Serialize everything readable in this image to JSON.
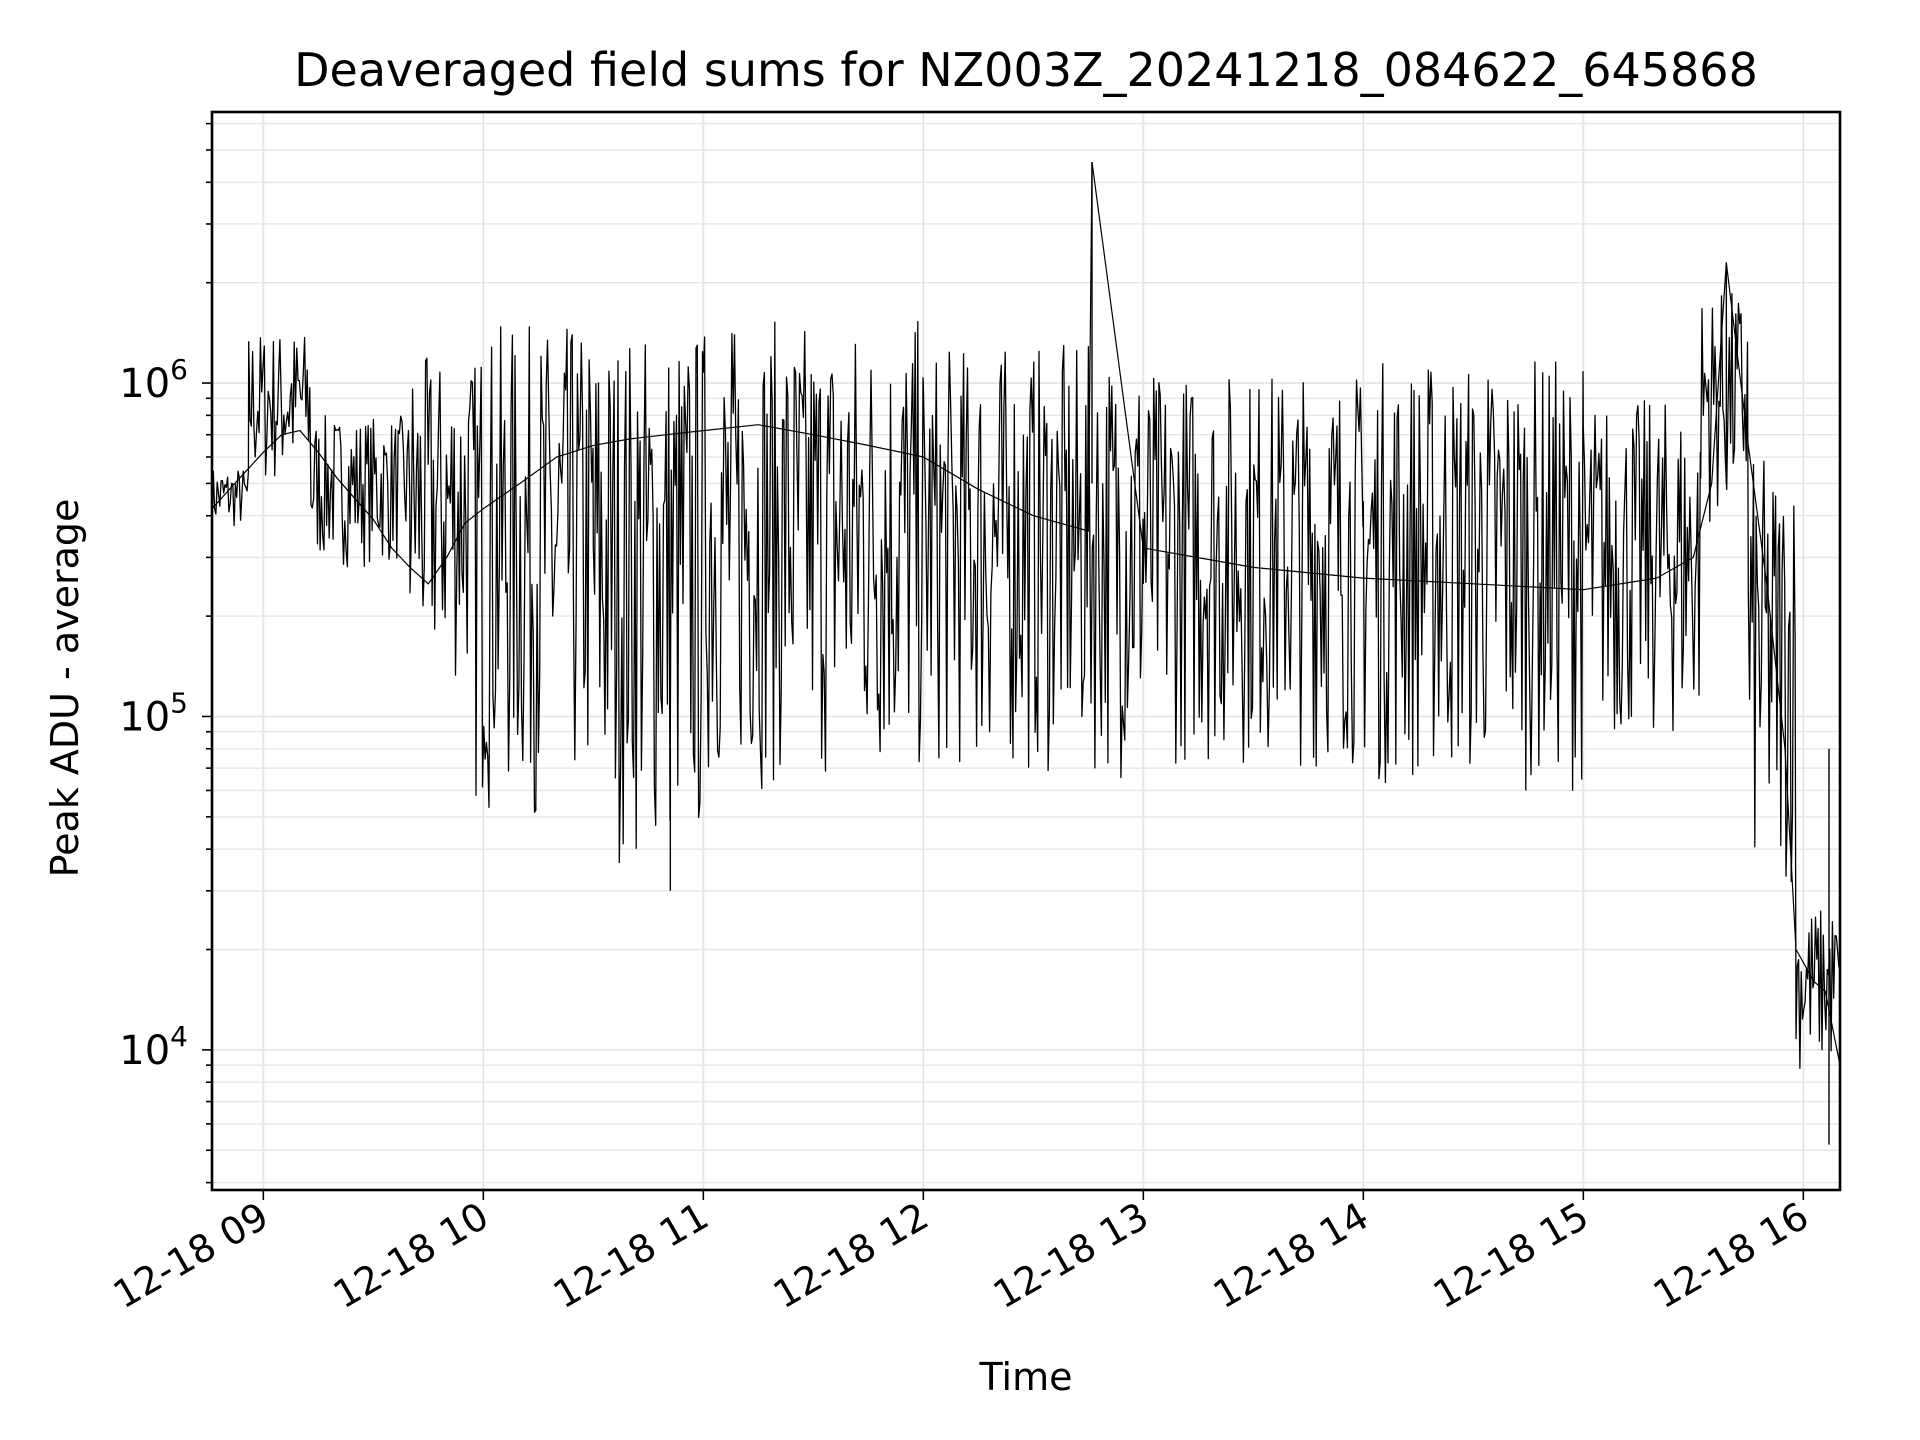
{
  "chart_data": {
    "type": "line",
    "title": "Deaveraged field sums for NZ003Z_20241218_084622_645868",
    "xlabel": "Time",
    "ylabel": "Peak ADU - average",
    "yscale": "log",
    "xlim": [
      "2024-12-18 08:46",
      "2024-12-18 16:10"
    ],
    "ylim": [
      3800,
      6500000
    ],
    "grid": true,
    "x_ticks": [
      {
        "value": "2024-12-18 09:00",
        "label": "12-18 09"
      },
      {
        "value": "2024-12-18 10:00",
        "label": "12-18 10"
      },
      {
        "value": "2024-12-18 11:00",
        "label": "12-18 11"
      },
      {
        "value": "2024-12-18 12:00",
        "label": "12-18 12"
      },
      {
        "value": "2024-12-18 13:00",
        "label": "12-18 13"
      },
      {
        "value": "2024-12-18 14:00",
        "label": "12-18 14"
      },
      {
        "value": "2024-12-18 15:00",
        "label": "12-18 15"
      },
      {
        "value": "2024-12-18 16:00",
        "label": "12-18 16"
      }
    ],
    "y_ticks": [
      {
        "value": 10000,
        "base": "10",
        "exp": "4"
      },
      {
        "value": 100000,
        "base": "10",
        "exp": "5"
      },
      {
        "value": 1000000,
        "base": "10",
        "exp": "6"
      }
    ],
    "series": [
      {
        "color": "#000000",
        "points": [
          [
            "2024-12-18 08:46",
            420000
          ],
          [
            "2024-12-18 08:50",
            470000
          ],
          [
            "2024-12-18 08:55",
            540000
          ],
          [
            "2024-12-18 09:00",
            620000
          ],
          [
            "2024-12-18 09:05",
            700000
          ],
          [
            "2024-12-18 09:10",
            720000
          ],
          [
            "2024-12-18 09:15",
            620000
          ],
          [
            "2024-12-18 09:20",
            520000
          ],
          [
            "2024-12-18 09:25",
            450000
          ],
          [
            "2024-12-18 09:30",
            390000
          ],
          [
            "2024-12-18 09:35",
            320000
          ],
          [
            "2024-12-18 09:40",
            280000
          ],
          [
            "2024-12-18 09:45",
            250000
          ],
          [
            "2024-12-18 09:50",
            300000
          ],
          [
            "2024-12-18 09:55",
            380000
          ],
          [
            "2024-12-18 10:00",
            420000
          ],
          [
            "2024-12-18 10:10",
            500000
          ],
          [
            "2024-12-18 10:20",
            600000
          ],
          [
            "2024-12-18 10:30",
            650000
          ],
          [
            "2024-12-18 10:40",
            680000
          ],
          [
            "2024-12-18 10:50",
            700000
          ],
          [
            "2024-12-18 11:00",
            720000
          ],
          [
            "2024-12-18 11:15",
            750000
          ],
          [
            "2024-12-18 11:30",
            700000
          ],
          [
            "2024-12-18 11:45",
            650000
          ],
          [
            "2024-12-18 12:00",
            600000
          ],
          [
            "2024-12-18 12:15",
            480000
          ],
          [
            "2024-12-18 12:30",
            400000
          ],
          [
            "2024-12-18 12:45",
            360000
          ],
          [
            "2024-12-18 12:46",
            4600000
          ],
          [
            "2024-12-18 13:00",
            320000
          ],
          [
            "2024-12-18 13:30",
            280000
          ],
          [
            "2024-12-18 14:00",
            260000
          ],
          [
            "2024-12-18 14:30",
            250000
          ],
          [
            "2024-12-18 15:00",
            240000
          ],
          [
            "2024-12-18 15:20",
            260000
          ],
          [
            "2024-12-18 15:30",
            300000
          ],
          [
            "2024-12-18 15:35",
            500000
          ],
          [
            "2024-12-18 15:39",
            2300000
          ],
          [
            "2024-12-18 15:45",
            650000
          ],
          [
            "2024-12-18 15:50",
            250000
          ],
          [
            "2024-12-18 15:55",
            80000
          ],
          [
            "2024-12-18 15:58",
            20000
          ],
          [
            "2024-12-18 16:03",
            16000
          ],
          [
            "2024-12-18 16:06",
            15000
          ],
          [
            "2024-12-18 16:10",
            9000
          ]
        ],
        "spikes": [
          {
            "x": "2024-12-18 12:46",
            "y": 4600000
          },
          {
            "x": "2024-12-18 15:39",
            "y": 2300000
          },
          {
            "x": "2024-12-18 10:51",
            "y": 30000
          },
          {
            "x": "2024-12-18 16:07",
            "y": 5200
          }
        ],
        "oscillation_bands": [
          {
            "x_start": "2024-12-18 08:46",
            "x_end": "2024-12-18 08:56",
            "low": 360000,
            "high": 560000
          },
          {
            "x_start": "2024-12-18 08:56",
            "x_end": "2024-12-18 09:13",
            "low": 480000,
            "high": 1450000
          },
          {
            "x_start": "2024-12-18 09:13",
            "x_end": "2024-12-18 09:40",
            "low": 280000,
            "high": 800000
          },
          {
            "x_start": "2024-12-18 09:40",
            "x_end": "2024-12-18 09:58",
            "low": 120000,
            "high": 1200000
          },
          {
            "x_start": "2024-12-18 09:58",
            "x_end": "2024-12-18 10:30",
            "low": 50000,
            "high": 1500000
          },
          {
            "x_start": "2024-12-18 10:30",
            "x_end": "2024-12-18 11:00",
            "low": 36000,
            "high": 1500000
          },
          {
            "x_start": "2024-12-18 11:00",
            "x_end": "2024-12-18 12:00",
            "low": 60000,
            "high": 1550000
          },
          {
            "x_start": "2024-12-18 12:00",
            "x_end": "2024-12-18 13:00",
            "low": 65000,
            "high": 1300000
          },
          {
            "x_start": "2024-12-18 13:00",
            "x_end": "2024-12-18 14:00",
            "low": 70000,
            "high": 1100000
          },
          {
            "x_start": "2024-12-18 14:00",
            "x_end": "2024-12-18 15:00",
            "low": 60000,
            "high": 1200000
          },
          {
            "x_start": "2024-12-18 15:00",
            "x_end": "2024-12-18 15:32",
            "low": 80000,
            "high": 900000
          },
          {
            "x_start": "2024-12-18 15:32",
            "x_end": "2024-12-18 15:45",
            "low": 380000,
            "high": 1900000
          },
          {
            "x_start": "2024-12-18 15:45",
            "x_end": "2024-12-18 15:58",
            "low": 30000,
            "high": 600000
          },
          {
            "x_start": "2024-12-18 15:58",
            "x_end": "2024-12-18 16:10",
            "low": 8500,
            "high": 27000
          }
        ]
      }
    ]
  }
}
